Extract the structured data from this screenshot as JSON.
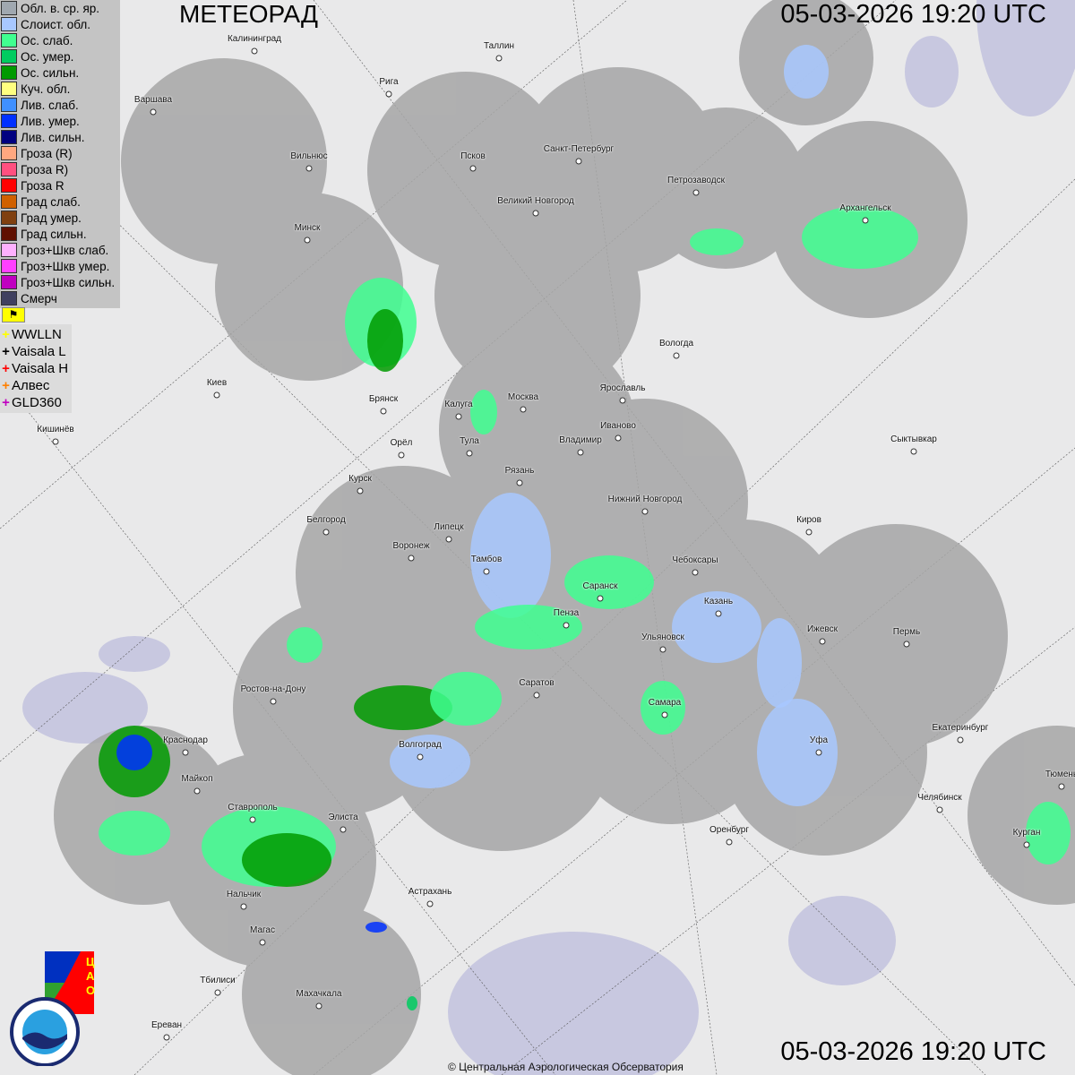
{
  "header": {
    "title": "МЕТЕОРАД",
    "timestamp_top": "05-03-2026  19:20 UTC",
    "timestamp_bottom": "05-03-2026  19:20 UTC"
  },
  "legend": [
    {
      "label": "Обл. в. ср. яр.",
      "color": "#a0a8b0"
    },
    {
      "label": "Слоист. обл.",
      "color": "#a8c8ff"
    },
    {
      "label": "Ос. слаб.",
      "color": "#40ff90"
    },
    {
      "label": "Ос. умер.",
      "color": "#00cc60"
    },
    {
      "label": "Ос. сильн.",
      "color": "#009a00"
    },
    {
      "label": "Куч. обл.",
      "color": "#ffff80"
    },
    {
      "label": "Лив. слаб.",
      "color": "#4090ff"
    },
    {
      "label": "Лив. умер.",
      "color": "#0030ff"
    },
    {
      "label": "Лив. сильн.",
      "color": "#000080"
    },
    {
      "label": "Гроза (R)",
      "color": "#ffa880"
    },
    {
      "label": "Гроза R)",
      "color": "#ff5080"
    },
    {
      "label": "Гроза R",
      "color": "#ff0000"
    },
    {
      "label": "Град слаб.",
      "color": "#d06000"
    },
    {
      "label": "Град умер.",
      "color": "#804010"
    },
    {
      "label": "Град сильн.",
      "color": "#601000"
    },
    {
      "label": "Гроз+Шкв слаб.",
      "color": "#ffb0ff"
    },
    {
      "label": "Гроз+Шкв умер.",
      "color": "#ff40ff"
    },
    {
      "label": "Гроз+Шкв сильн.",
      "color": "#c000c0"
    },
    {
      "label": "Смерч",
      "color": "#404060"
    }
  ],
  "lightning_toggle_icon": "flag-icon",
  "lightning": [
    {
      "label": "WWLLN",
      "color": "#ffff00"
    },
    {
      "label": "Vaisala L",
      "color": "#000000"
    },
    {
      "label": "Vaisala H",
      "color": "#ff0000"
    },
    {
      "label": "Алвес",
      "color": "#ff8000"
    },
    {
      "label": "GLD360",
      "color": "#c000c0"
    }
  ],
  "cities": [
    "Калининград",
    "Таллин",
    "Рига",
    "Варшава",
    "Санкт-Петербург",
    "Вильнюс",
    "Псков",
    "Петрозаводск",
    "Великий Новгород",
    "Архангельск",
    "Минск",
    "Вологда",
    "Киев",
    "Ярославль",
    "Брянск",
    "Москва",
    "Калуга",
    "Иваново",
    "Кишинёв",
    "Орёл",
    "Владимир",
    "Тула",
    "Сыктывкар",
    "Рязань",
    "Курск",
    "Нижний Новгород",
    "Белгород",
    "Киров",
    "Липецк",
    "Воронеж",
    "Тамбов",
    "Чебоксары",
    "Саранск",
    "Казань",
    "Пенза",
    "Ижевск",
    "Пермь",
    "Ульяновск",
    "Ростов-на-Дону",
    "Саратов",
    "Самара",
    "Краснодар",
    "Уфа",
    "Екатеринбург",
    "Волгоград",
    "Майкоп",
    "Тюмень",
    "Челябинск",
    "Ставрополь",
    "Элиста",
    "Оренбург",
    "Курган",
    "Астрахань",
    "Нальчик",
    "Магас",
    "Тбилиси",
    "Махачкала",
    "Ереван"
  ],
  "logos": {
    "cao": "ЦАО 1941",
    "roshydromet": "РОСГИДРОМЕТ ROSHYDROMET"
  },
  "copyright": "© Центральная Аэрологическая Обсерватория",
  "colors": {
    "radar_coverage": "#a6a6a6",
    "background": "#e9e9ea",
    "water": "#c8c8e0"
  }
}
